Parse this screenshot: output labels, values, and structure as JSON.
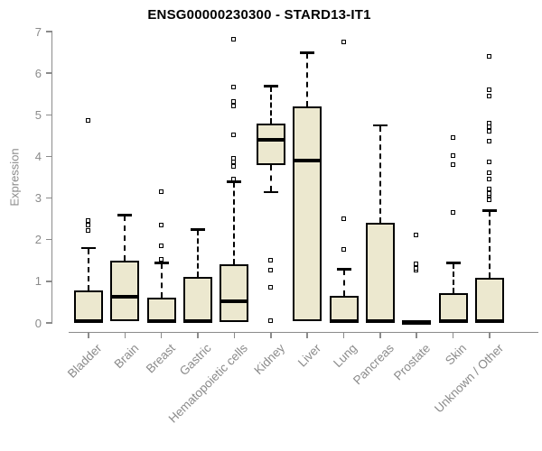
{
  "title": "ENSG00000230300 - STARD13-IT1",
  "chart_data": {
    "type": "boxplot",
    "title": "ENSG00000230300 - STARD13-IT1",
    "xlabel": "",
    "ylabel": "Expression",
    "ylim": [
      0,
      7
    ],
    "yticks": [
      0,
      1,
      2,
      3,
      4,
      5,
      6,
      7
    ],
    "grid": false,
    "legend": "none",
    "categories": [
      "Bladder",
      "Brain",
      "Breast",
      "Gastric",
      "Hematopoietic cells",
      "Kidney",
      "Liver",
      "Lung",
      "Pancreas",
      "Prostate",
      "Skin",
      "Unknown / Other"
    ],
    "boxes": [
      {
        "category": "Bladder",
        "whisker_low": 0,
        "q1": 0,
        "median": 0.05,
        "q3": 0.78,
        "whisker_high": 1.8,
        "outliers": [
          2.2,
          2.35,
          2.45,
          4.85
        ]
      },
      {
        "category": "Brain",
        "whisker_low": 0.05,
        "q1": 0.05,
        "median": 0.63,
        "q3": 1.5,
        "whisker_high": 2.6,
        "outliers": []
      },
      {
        "category": "Breast",
        "whisker_low": 0,
        "q1": 0,
        "median": 0.04,
        "q3": 0.6,
        "whisker_high": 1.45,
        "outliers": [
          1.52,
          1.85,
          2.35,
          3.15
        ]
      },
      {
        "category": "Gastric",
        "whisker_low": 0,
        "q1": 0,
        "median": 0.04,
        "q3": 1.1,
        "whisker_high": 2.25,
        "outliers": []
      },
      {
        "category": "Hematopoietic cells",
        "whisker_low": 0.03,
        "q1": 0.03,
        "median": 0.52,
        "q3": 1.4,
        "whisker_high": 3.4,
        "outliers": [
          3.45,
          3.75,
          3.85,
          3.95,
          4.5,
          5.2,
          5.3,
          5.65,
          6.8
        ]
      },
      {
        "category": "Kidney",
        "whisker_low": 3.15,
        "q1": 3.8,
        "median": 4.4,
        "q3": 4.8,
        "whisker_high": 5.7,
        "outliers": [
          0.05,
          0.85,
          1.25,
          1.5
        ]
      },
      {
        "category": "Liver",
        "whisker_low": 0.05,
        "q1": 0.05,
        "median": 3.9,
        "q3": 5.2,
        "whisker_high": 6.5,
        "outliers": []
      },
      {
        "category": "Lung",
        "whisker_low": 0,
        "q1": 0,
        "median": 0.04,
        "q3": 0.66,
        "whisker_high": 1.3,
        "outliers": [
          1.75,
          2.5,
          6.75
        ]
      },
      {
        "category": "Pancreas",
        "whisker_low": 0,
        "q1": 0,
        "median": 0.04,
        "q3": 2.4,
        "whisker_high": 4.75,
        "outliers": []
      },
      {
        "category": "Prostate",
        "whisker_low": 0,
        "q1": 0,
        "median": 0.03,
        "q3": 0.05,
        "whisker_high": 0.05,
        "outliers": [
          1.25,
          1.3,
          1.4,
          2.1
        ]
      },
      {
        "category": "Skin",
        "whisker_low": 0,
        "q1": 0,
        "median": 0.04,
        "q3": 0.72,
        "whisker_high": 1.45,
        "outliers": [
          2.65,
          3.8,
          4.0,
          4.45
        ]
      },
      {
        "category": "Unknown / Other",
        "whisker_low": 0,
        "q1": 0,
        "median": 0.04,
        "q3": 1.08,
        "whisker_high": 2.7,
        "outliers": [
          2.95,
          3.05,
          3.1,
          3.2,
          3.45,
          3.6,
          3.85,
          4.35,
          4.6,
          4.7,
          4.8,
          5.45,
          5.6,
          6.4
        ]
      }
    ],
    "style": {
      "box_fill": "#ECE8CF",
      "box_border": "#000000",
      "median_color": "#000000",
      "axis_color": "#8B8B8B",
      "outlier_shape": "open-square"
    }
  }
}
